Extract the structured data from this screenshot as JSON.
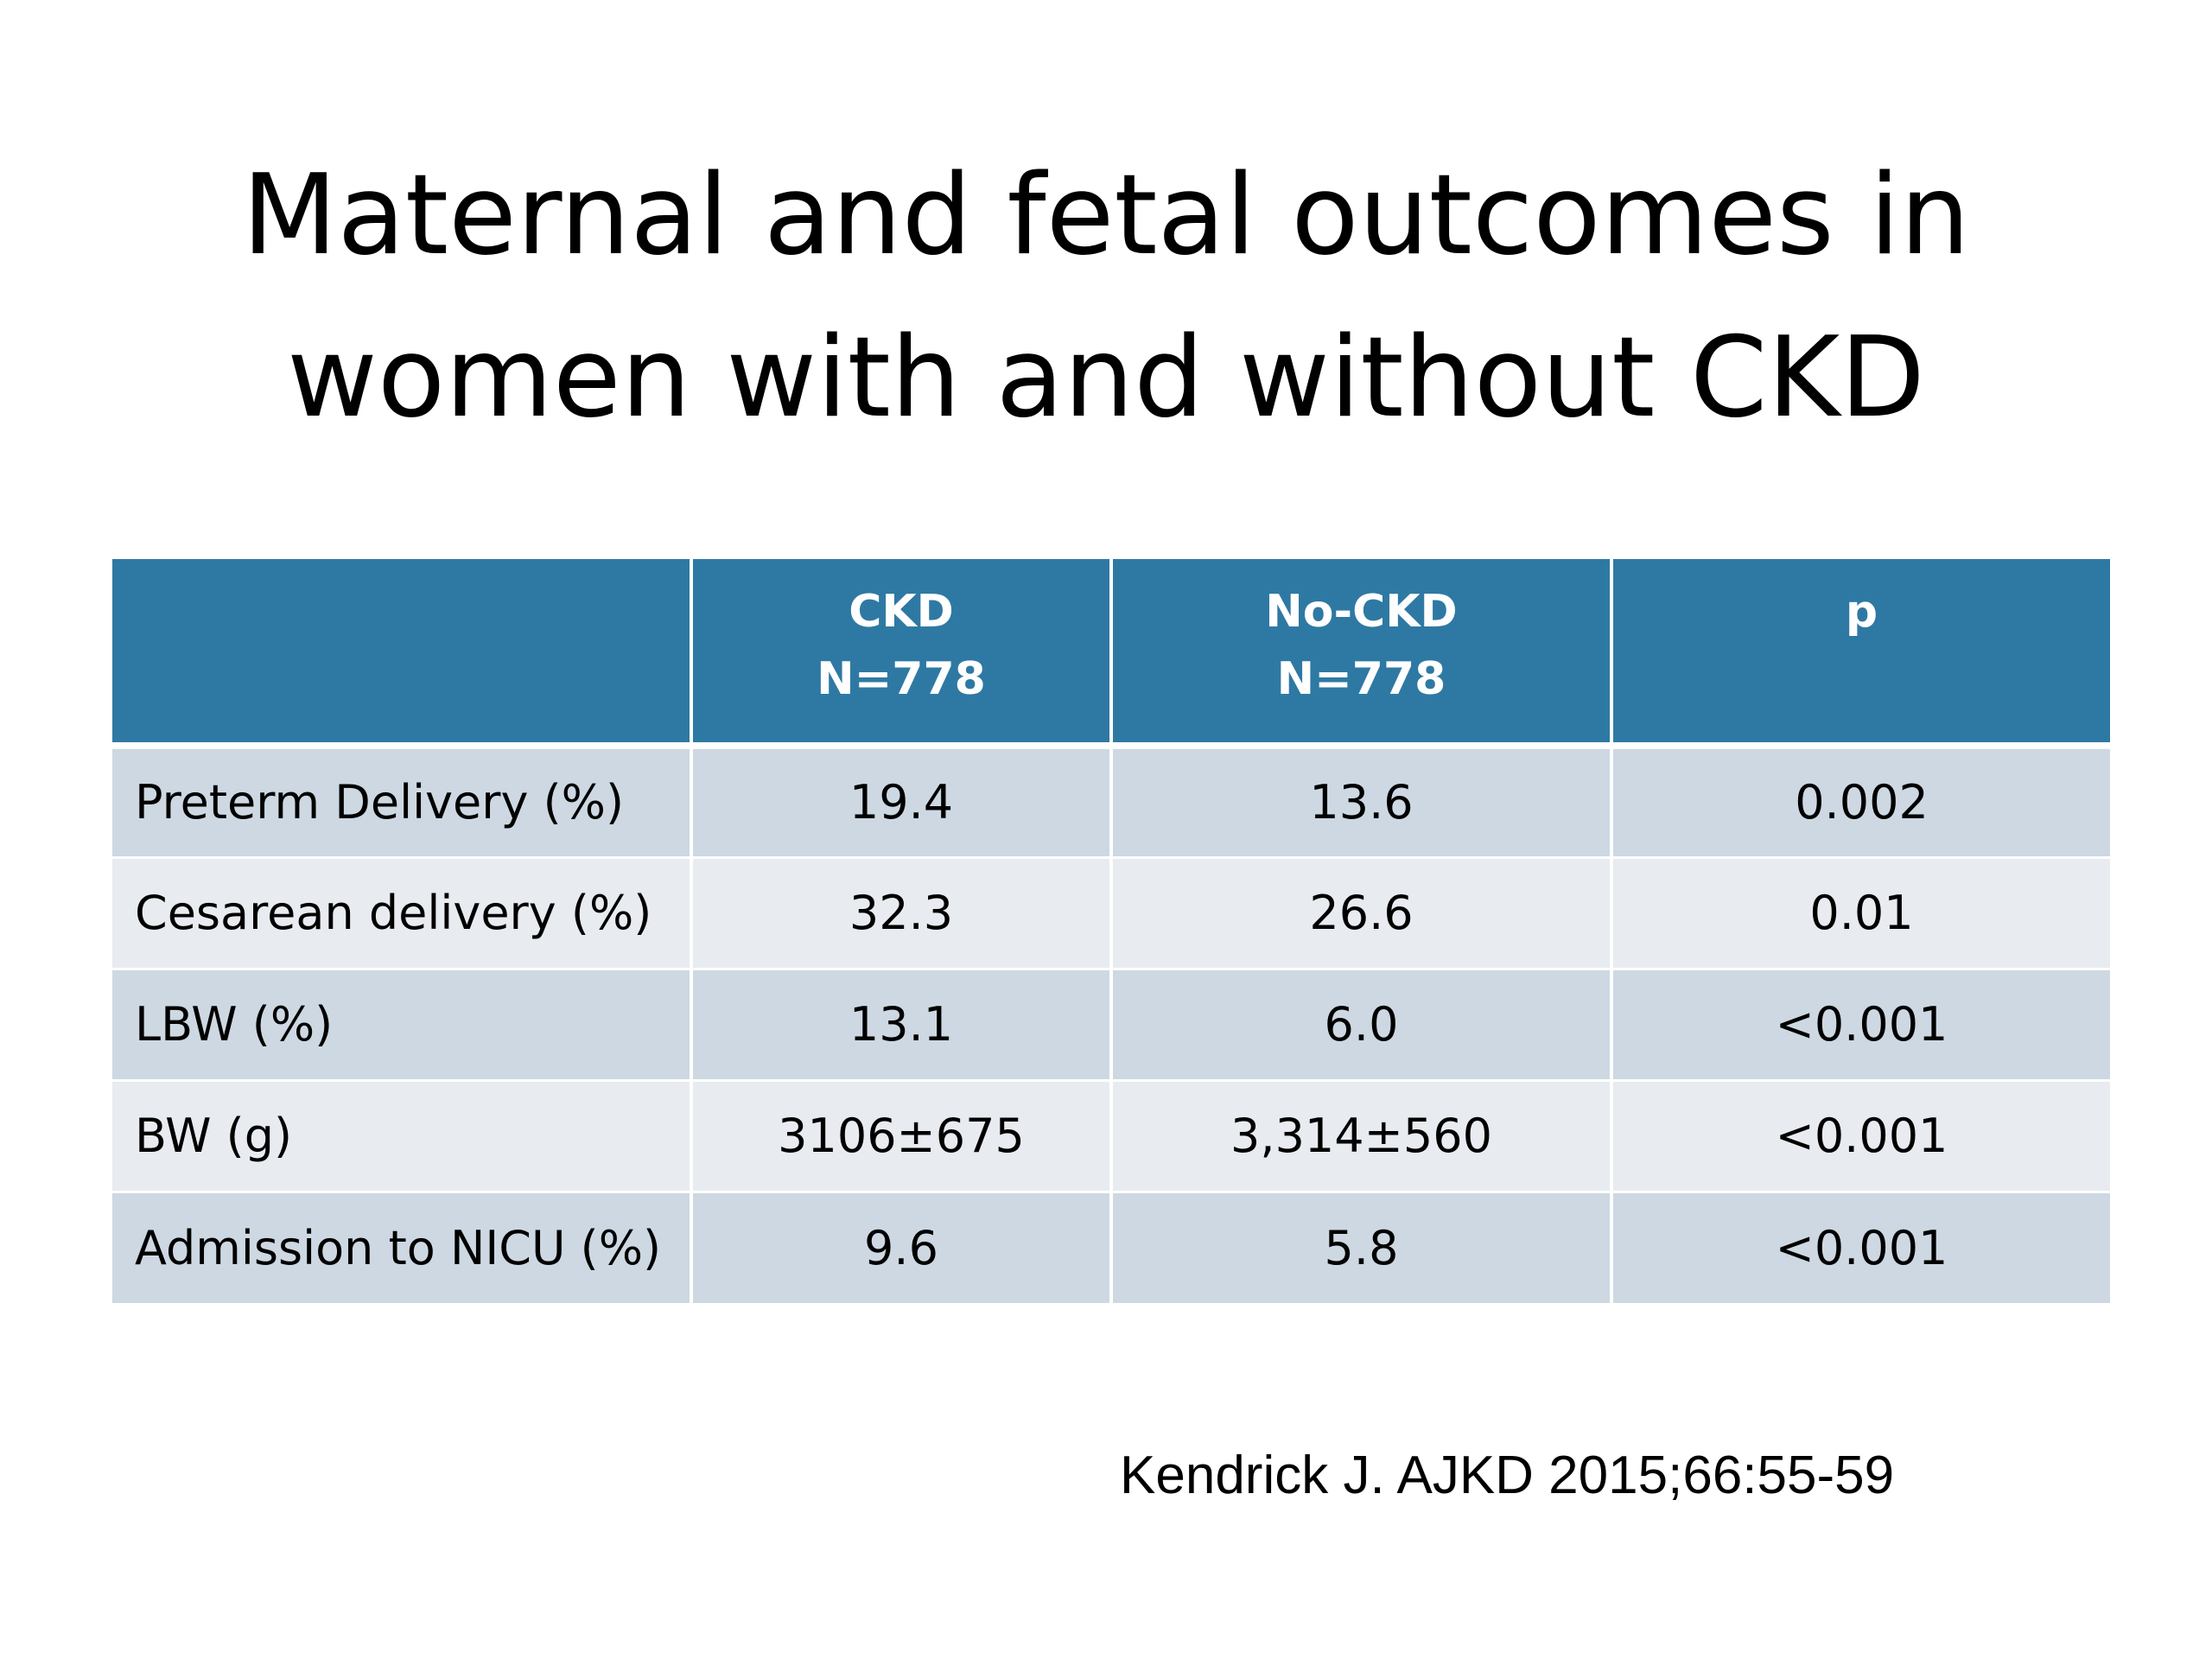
{
  "slide": {
    "title_line1": "Maternal and fetal outcomes in",
    "title_line2": "women with and without CKD",
    "citation": "Kendrick J. AJKD 2015;66:55-59"
  },
  "table": {
    "headers": [
      {
        "line1": "",
        "line2": ""
      },
      {
        "line1": "CKD",
        "line2": "N=778"
      },
      {
        "line1": "No-CKD",
        "line2": "N=778"
      },
      {
        "line1": "p",
        "line2": ""
      }
    ],
    "rows": [
      {
        "label": "Preterm Delivery (%)",
        "ckd": "19.4",
        "no_ckd": "13.6",
        "p": "0.002"
      },
      {
        "label": "Cesarean delivery (%)",
        "ckd": "32.3",
        "no_ckd": "26.6",
        "p": "0.01"
      },
      {
        "label": "LBW (%)",
        "ckd": "13.1",
        "no_ckd": "6.0",
        "p": "<0.001"
      },
      {
        "label": "BW (g)",
        "ckd": "3106±675",
        "no_ckd": "3,314±560",
        "p": "<0.001"
      },
      {
        "label": "Admission to NICU (%)",
        "ckd": "9.6",
        "no_ckd": "5.8",
        "p": "<0.001"
      }
    ]
  },
  "colors": {
    "header_fill": "#2e79a3",
    "row_odd": "#cdd8e2",
    "row_even": "#e8ebef"
  }
}
